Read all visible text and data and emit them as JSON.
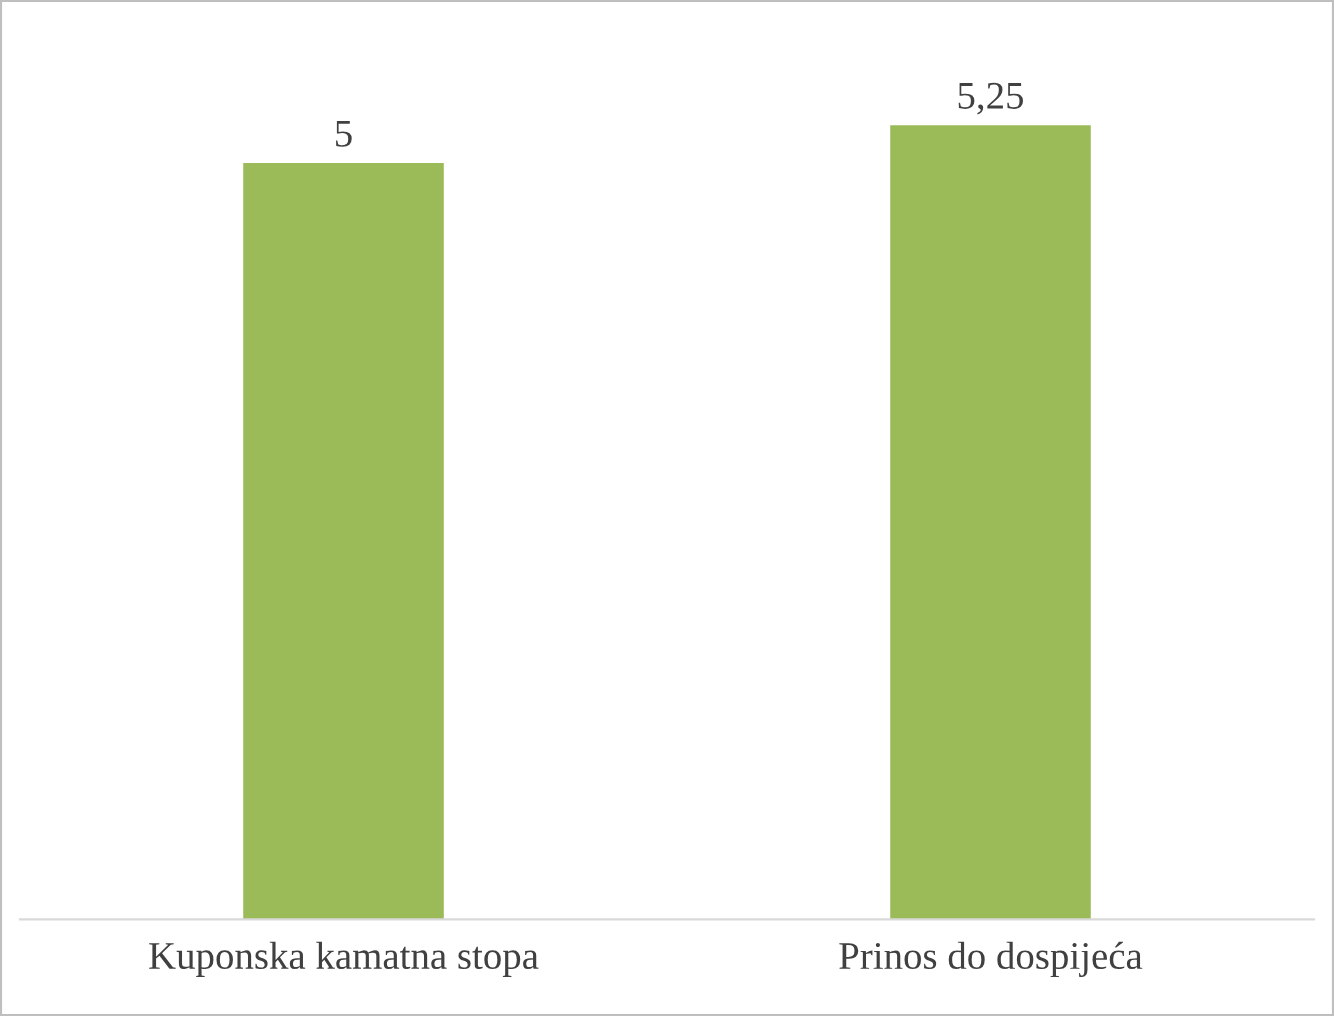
{
  "chart_data": {
    "type": "bar",
    "categories": [
      "Kuponska kamatna stopa",
      "Prinos do dospijeća"
    ],
    "values": [
      5,
      5.25
    ],
    "color": "#9bbb59",
    "value_labels": [
      "5",
      "5,25"
    ],
    "grid": false,
    "legend": false
  }
}
